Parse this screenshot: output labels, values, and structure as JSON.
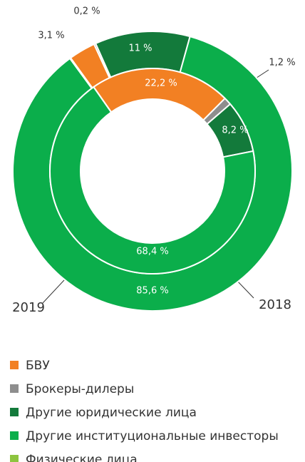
{
  "chart_data": {
    "type": "donut",
    "categories": [
      "БВУ",
      "Брокеры-дилеры",
      "Другие юридические лица",
      "Другие институциональные инвесторы",
      "Физические лица"
    ],
    "colors": [
      "#f28023",
      "#8e8e8e",
      "#137a3b",
      "#0bae4b",
      "#8dc43f"
    ],
    "series": [
      {
        "name": "2019",
        "values": [
          3.1,
          0.2,
          11,
          85.6,
          0.1
        ],
        "value_labels": [
          "3,1 %",
          "0,2 %",
          "11 %",
          "85,6 %",
          null
        ]
      },
      {
        "name": "2018",
        "values": [
          22.2,
          1.2,
          8.2,
          68.4,
          0
        ],
        "value_labels": [
          "22,2 %",
          "1,2 %",
          "8,2 %",
          "68,4 %",
          null
        ]
      }
    ]
  }
}
